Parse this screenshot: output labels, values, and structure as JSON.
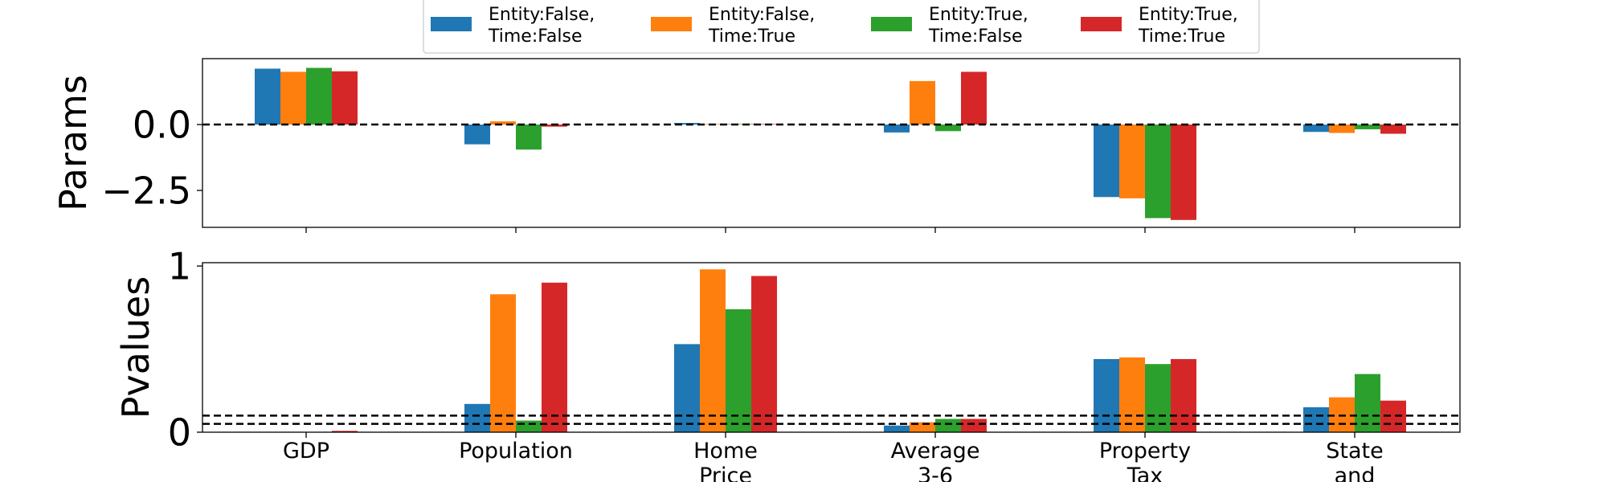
{
  "colors": {
    "series": [
      "#1f77b4",
      "#ff7f0e",
      "#2ca02c",
      "#d62728"
    ],
    "reference_line": "#000000",
    "axes": "#000000",
    "background": "#ffffff"
  },
  "chart_data": [
    {
      "type": "bar",
      "panel": "params",
      "ylabel": "Params",
      "ylim": [
        -3.9,
        2.5
      ],
      "yticks": [
        0.0,
        -2.5
      ],
      "ytick_labels": [
        "0.0",
        "−2.5"
      ],
      "grid": false,
      "legend_position": "above the figure",
      "reference_lines": [
        0.0
      ],
      "categories": [
        [
          "GDP"
        ],
        [
          "Population"
        ],
        [
          "Home",
          "Price"
        ],
        [
          "Average",
          "3-6"
        ],
        [
          "Property",
          "Tax"
        ],
        [
          "State",
          "and"
        ]
      ],
      "categories_tick_labels_shown": false,
      "series": [
        {
          "name": [
            "Entity:False,",
            "Time:False"
          ],
          "values": [
            2.12,
            -0.75,
            0.06,
            -0.3,
            -2.75,
            -0.28
          ]
        },
        {
          "name": [
            "Entity:False,",
            "Time:True"
          ],
          "values": [
            2.0,
            0.12,
            0.02,
            1.65,
            -2.8,
            -0.32
          ]
        },
        {
          "name": [
            "Entity:True,",
            "Time:False"
          ],
          "values": [
            2.15,
            -0.95,
            0.02,
            -0.25,
            -3.55,
            -0.18
          ]
        },
        {
          "name": [
            "Entity:True,",
            "Time:True"
          ],
          "values": [
            2.02,
            -0.08,
            0.02,
            2.0,
            -3.62,
            -0.35
          ]
        }
      ]
    },
    {
      "type": "bar",
      "panel": "pvalues",
      "ylabel": "Pvalues",
      "ylim": [
        0,
        1.02
      ],
      "yticks": [
        0,
        1
      ],
      "ytick_labels": [
        "0",
        "1"
      ],
      "grid": false,
      "reference_lines": [
        0.05,
        0.1
      ],
      "categories": [
        [
          "GDP"
        ],
        [
          "Population"
        ],
        [
          "Home",
          "Price"
        ],
        [
          "Average",
          "3-6"
        ],
        [
          "Property",
          "Tax"
        ],
        [
          "State",
          "and"
        ]
      ],
      "series": [
        {
          "name": [
            "Entity:False,",
            "Time:False"
          ],
          "values": [
            0.002,
            0.17,
            0.53,
            0.04,
            0.44,
            0.15
          ]
        },
        {
          "name": [
            "Entity:False,",
            "Time:True"
          ],
          "values": [
            0.002,
            0.83,
            0.98,
            0.06,
            0.45,
            0.21
          ]
        },
        {
          "name": [
            "Entity:True,",
            "Time:False"
          ],
          "values": [
            0.002,
            0.07,
            0.74,
            0.08,
            0.41,
            0.35
          ]
        },
        {
          "name": [
            "Entity:True,",
            "Time:True"
          ],
          "values": [
            0.008,
            0.9,
            0.94,
            0.08,
            0.44,
            0.19
          ]
        }
      ]
    }
  ]
}
